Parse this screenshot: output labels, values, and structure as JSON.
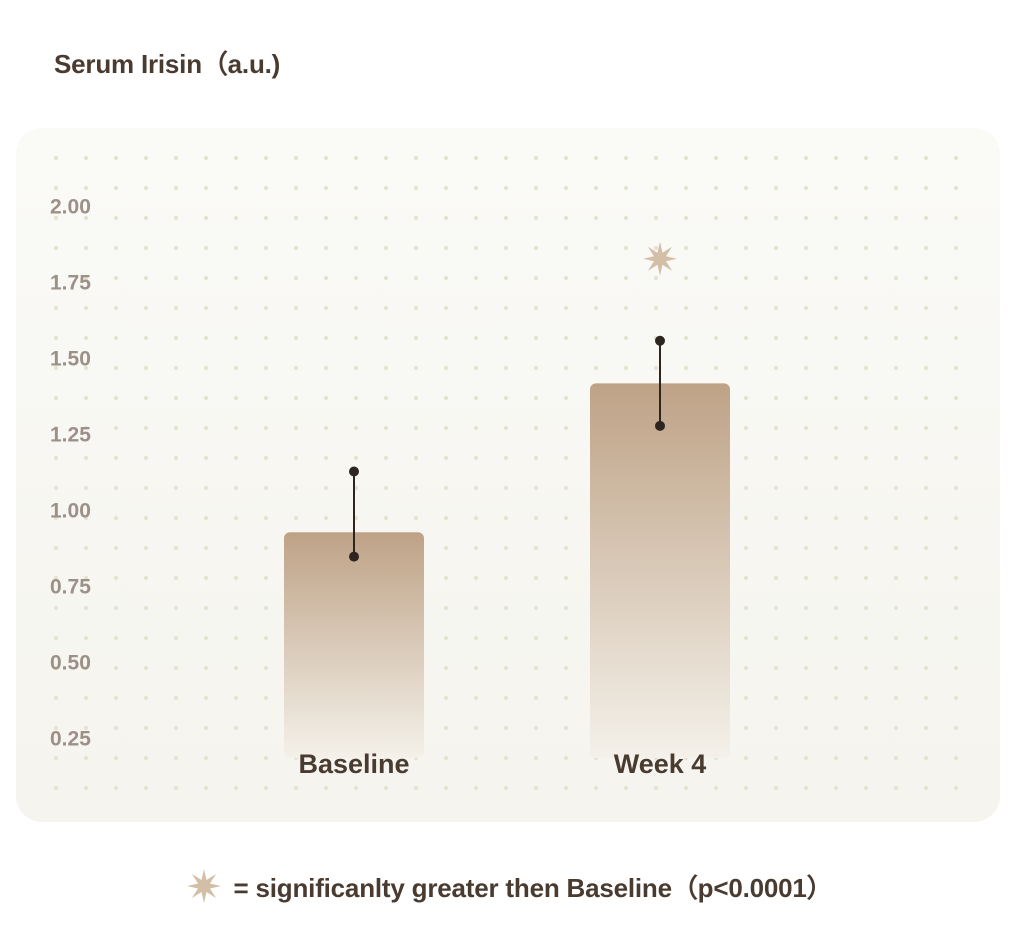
{
  "chart_data": {
    "type": "bar",
    "ylabel": "Serum Irisin（a.u.)",
    "categories": [
      "Baseline",
      "Week 4"
    ],
    "values": [
      0.93,
      1.42
    ],
    "error_bars": [
      {
        "lower": 0.85,
        "upper": 1.13
      },
      {
        "lower": 1.28,
        "upper": 1.56
      }
    ],
    "significance": [
      false,
      true
    ],
    "yticks": [
      "0.25",
      "0.50",
      "0.75",
      "1.00",
      "1.25",
      "1.50",
      "1.75",
      "2.00"
    ],
    "ylim": [
      0.2,
      2.1
    ],
    "grid": "dotted",
    "legend_note": "= significanlty greater then Baseline（p<0.0001）",
    "colors": {
      "bar_top": "#bea286",
      "bar_bottom": "#f4f1ea",
      "error_bar": "#2e2420",
      "star": "#d3bea7",
      "tick_text": "#9c9088",
      "label_text": "#4a3b30",
      "grid_dot": "#e3e3cf"
    }
  }
}
